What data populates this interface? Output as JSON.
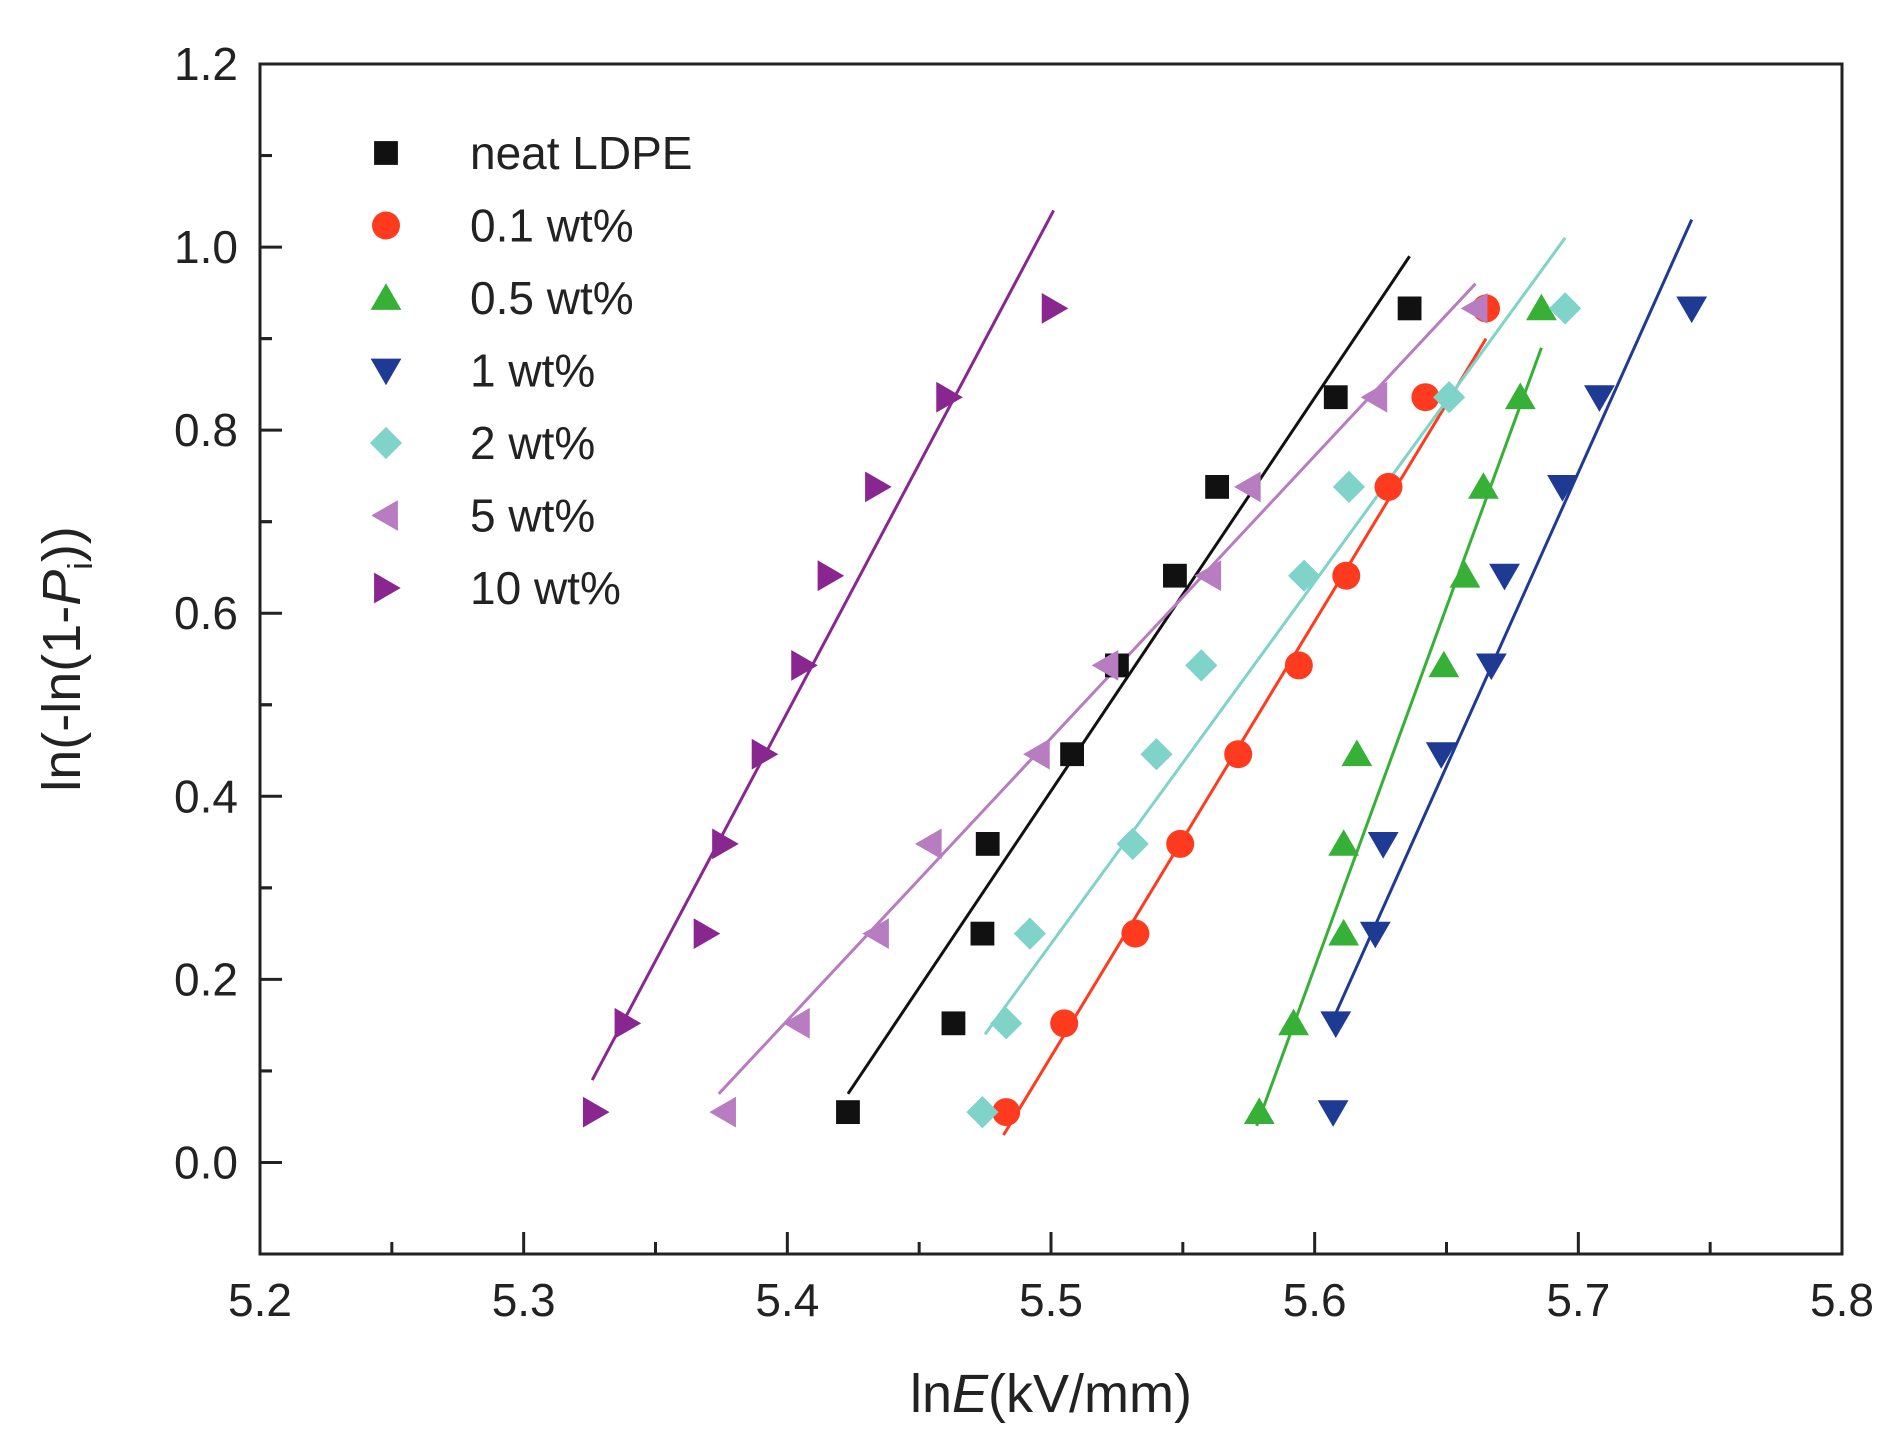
{
  "chart_data": {
    "type": "scatter",
    "title": "",
    "xlabel": {
      "prefix": "ln",
      "italic": "E",
      "suffix": "(kV/mm)"
    },
    "ylabel": {
      "prefix": "ln(-ln(1-",
      "italic": "P",
      "subscript": "i",
      "suffix": "))"
    },
    "xlim": [
      5.2,
      5.8
    ],
    "ylim": [
      -0.1,
      1.2
    ],
    "xticks": [
      "5.2",
      "5.3",
      "5.4",
      "5.5",
      "5.6",
      "5.7",
      "5.8"
    ],
    "yticks": [
      "0.0",
      "0.2",
      "0.4",
      "0.6",
      "0.8",
      "1.0",
      "1.2"
    ],
    "grid": false,
    "legend_position": "top-left",
    "y_values": [
      0.055,
      0.152,
      0.25,
      0.348,
      0.446,
      0.543,
      0.641,
      0.738,
      0.836,
      0.933
    ],
    "series": [
      {
        "name": "neat LDPE",
        "marker": "square",
        "color": "#111111",
        "x": [
          5.423,
          5.463,
          5.474,
          5.476,
          5.508,
          5.525,
          5.547,
          5.563,
          5.608,
          5.636
        ],
        "fit": {
          "x": [
            5.423,
            5.636
          ],
          "y": [
            0.075,
            0.99
          ]
        }
      },
      {
        "name": "0.1 wt%",
        "marker": "circle",
        "color": "#ff3b1f",
        "x": [
          5.483,
          5.505,
          5.532,
          5.549,
          5.571,
          5.594,
          5.612,
          5.628,
          5.642,
          5.665
        ],
        "fit": {
          "x": [
            5.482,
            5.665
          ],
          "y": [
            0.03,
            0.9
          ]
        }
      },
      {
        "name": "0.5 wt%",
        "marker": "triangle-up",
        "color": "#36b036",
        "x": [
          5.579,
          5.592,
          5.611,
          5.611,
          5.616,
          5.649,
          5.657,
          5.664,
          5.678,
          5.686
        ],
        "fit": {
          "x": [
            5.578,
            5.686
          ],
          "y": [
            0.04,
            0.89
          ]
        }
      },
      {
        "name": "1 wt%",
        "marker": "triangle-down",
        "color": "#1f3a93",
        "x": [
          5.607,
          5.608,
          5.623,
          5.626,
          5.648,
          5.667,
          5.672,
          5.694,
          5.708,
          5.743
        ],
        "fit": {
          "x": [
            5.606,
            5.743
          ],
          "y": [
            0.15,
            1.03
          ]
        }
      },
      {
        "name": "2 wt%",
        "marker": "diamond",
        "color": "#7fd3c8",
        "x": [
          5.474,
          5.483,
          5.492,
          5.531,
          5.54,
          5.557,
          5.596,
          5.613,
          5.651,
          5.695
        ],
        "fit": {
          "x": [
            5.475,
            5.695
          ],
          "y": [
            0.14,
            1.01
          ]
        }
      },
      {
        "name": "5 wt%",
        "marker": "triangle-left",
        "color": "#b87cc0",
        "x": [
          5.376,
          5.404,
          5.434,
          5.454,
          5.495,
          5.521,
          5.56,
          5.575,
          5.623,
          5.661
        ],
        "fit": {
          "x": [
            5.374,
            5.661
          ],
          "y": [
            0.075,
            0.96
          ]
        }
      },
      {
        "name": "10 wt%",
        "marker": "triangle-right",
        "color": "#8a268f",
        "x": [
          5.327,
          5.339,
          5.369,
          5.376,
          5.391,
          5.406,
          5.416,
          5.434,
          5.461,
          5.501
        ],
        "fit": {
          "x": [
            5.326,
            5.501
          ],
          "y": [
            0.09,
            1.04
          ]
        }
      }
    ]
  }
}
